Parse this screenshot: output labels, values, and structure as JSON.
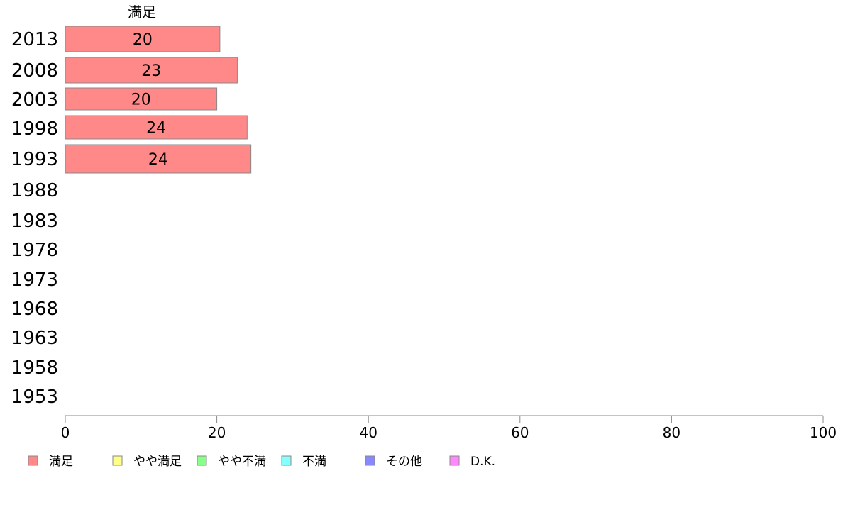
{
  "chart_data": {
    "type": "bar",
    "orientation": "horizontal",
    "title": "",
    "xlabel": "",
    "ylabel": "",
    "series_header": "満足",
    "categories": [
      "2013",
      "2008",
      "2003",
      "1998",
      "1993",
      "1988",
      "1983",
      "1978",
      "1973",
      "1968",
      "1963",
      "1958",
      "1953"
    ],
    "series": [
      {
        "name": "満足",
        "color": "#ff8888",
        "values": [
          20.4,
          22.7,
          20.0,
          24.0,
          24.5,
          null,
          null,
          null,
          null,
          null,
          null,
          null,
          null
        ],
        "labels": [
          "20",
          "23",
          "20",
          "24",
          "24",
          "",
          "",
          "",
          "",
          "",
          "",
          "",
          ""
        ]
      },
      {
        "name": "やや満足",
        "color": "#ffff88",
        "values": [
          null,
          null,
          null,
          null,
          null,
          null,
          null,
          null,
          null,
          null,
          null,
          null,
          null
        ]
      },
      {
        "name": "やや不満",
        "color": "#88ff88",
        "values": [
          null,
          null,
          null,
          null,
          null,
          null,
          null,
          null,
          null,
          null,
          null,
          null,
          null
        ]
      },
      {
        "name": "不満",
        "color": "#88ffff",
        "values": [
          null,
          null,
          null,
          null,
          null,
          null,
          null,
          null,
          null,
          null,
          null,
          null,
          null
        ]
      },
      {
        "name": "その他",
        "color": "#8888ff",
        "values": [
          null,
          null,
          null,
          null,
          null,
          null,
          null,
          null,
          null,
          null,
          null,
          null,
          null
        ]
      },
      {
        "name": "D.K.",
        "color": "#ff88ff",
        "values": [
          null,
          null,
          null,
          null,
          null,
          null,
          null,
          null,
          null,
          null,
          null,
          null,
          null
        ]
      }
    ],
    "xlim": [
      0,
      100
    ],
    "xticks": [
      0,
      20,
      40,
      60,
      80,
      100
    ],
    "grid": false,
    "legend_position": "bottom"
  }
}
